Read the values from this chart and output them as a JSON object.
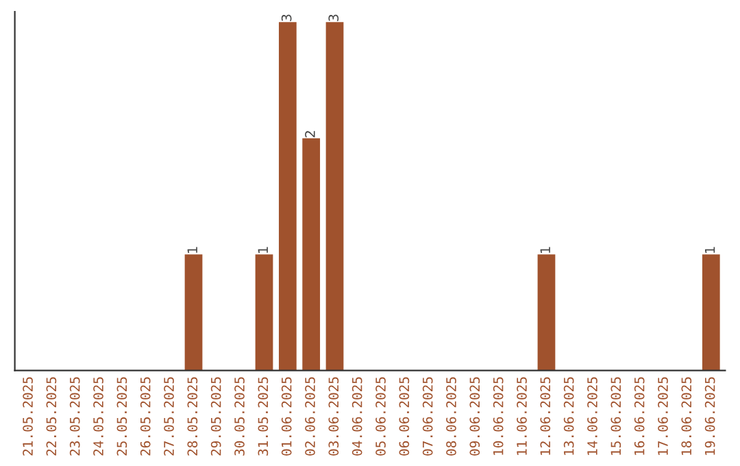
{
  "chart_data": {
    "type": "bar",
    "categories": [
      "21.05.2025",
      "22.05.2025",
      "23.05.2025",
      "24.05.2025",
      "25.05.2025",
      "26.05.2025",
      "27.05.2025",
      "28.05.2025",
      "29.05.2025",
      "30.05.2025",
      "31.05.2025",
      "01.06.2025",
      "02.06.2025",
      "03.06.2025",
      "04.06.2025",
      "05.06.2025",
      "06.06.2025",
      "07.06.2025",
      "08.06.2025",
      "09.06.2025",
      "10.06.2025",
      "11.06.2025",
      "12.06.2025",
      "13.06.2025",
      "14.06.2025",
      "15.06.2025",
      "16.06.2025",
      "17.06.2025",
      "18.06.2025",
      "19.06.2025"
    ],
    "values": [
      0,
      0,
      0,
      0,
      0,
      0,
      0,
      1,
      0,
      0,
      1,
      3,
      2,
      3,
      0,
      0,
      0,
      0,
      0,
      0,
      0,
      0,
      1,
      0,
      0,
      0,
      0,
      0,
      0,
      1
    ],
    "value_labels": [
      null,
      null,
      null,
      null,
      null,
      null,
      null,
      "1",
      null,
      null,
      "1",
      "3",
      "2",
      "3",
      null,
      null,
      null,
      null,
      null,
      null,
      null,
      null,
      "1",
      null,
      null,
      null,
      null,
      null,
      null,
      "1"
    ],
    "color": "#a0522d",
    "tick_labels": "x",
    "grid": false
  }
}
